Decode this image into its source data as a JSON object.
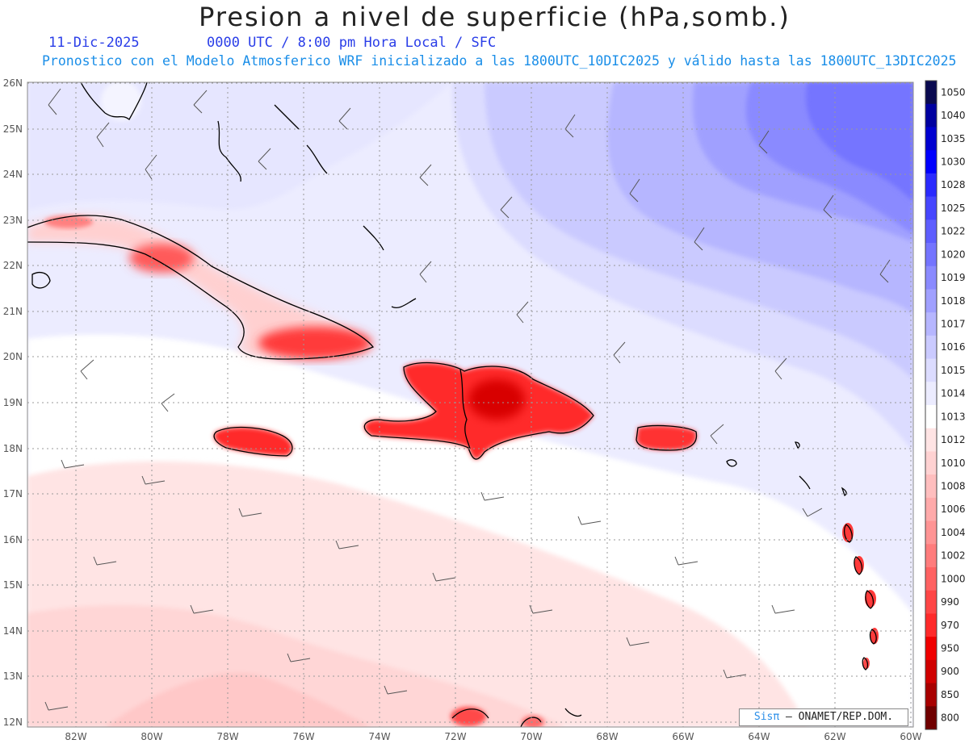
{
  "header": {
    "title": "Presion a nivel de superficie (hPa,somb.)",
    "date": "11-Dic-2025",
    "time_info": "0000 UTC / 8:00 pm Hora Local / SFC",
    "forecast_info": "Pronostico con el Modelo Atmosferico WRF inicializado a las 1800UTC_10DIC2025 y válido hasta las  1800UTC_13DIC2025"
  },
  "map": {
    "lat_labels": [
      "26N",
      "25N",
      "24N",
      "23N",
      "22N",
      "21N",
      "20N",
      "19N",
      "18N",
      "17N",
      "16N",
      "15N",
      "14N",
      "13N",
      "12N"
    ],
    "lon_labels": [
      "82W",
      "80W",
      "78W",
      "76W",
      "74W",
      "72W",
      "70W",
      "68W",
      "66W",
      "64W",
      "62W",
      "60W"
    ]
  },
  "legend": {
    "levels": [
      "1050",
      "1040",
      "1035",
      "1030",
      "1028",
      "1025",
      "1022",
      "1020",
      "1019",
      "1018",
      "1017",
      "1016",
      "1015",
      "1014",
      "1013",
      "1012",
      "1010",
      "1008",
      "1006",
      "1004",
      "1002",
      "1000",
      "990",
      "970",
      "950",
      "900",
      "850",
      "800"
    ],
    "colors": [
      "#0a0a50",
      "#0000a0",
      "#0000d0",
      "#0000ff",
      "#2a2aff",
      "#4646ff",
      "#5e5eff",
      "#7474ff",
      "#8a8aff",
      "#a0a0ff",
      "#b6b6ff",
      "#cacaff",
      "#dcdcff",
      "#ececff",
      "#ffffff",
      "#ffe4e4",
      "#ffd2d2",
      "#ffbebe",
      "#ffaaaa",
      "#ff9494",
      "#ff7c7c",
      "#ff6262",
      "#ff4646",
      "#ff2a2a",
      "#f00000",
      "#d00000",
      "#a80000",
      "#700000"
    ]
  },
  "credit": {
    "logo": "Sisπ",
    "text": "– ONAMET/REP.DOM."
  }
}
